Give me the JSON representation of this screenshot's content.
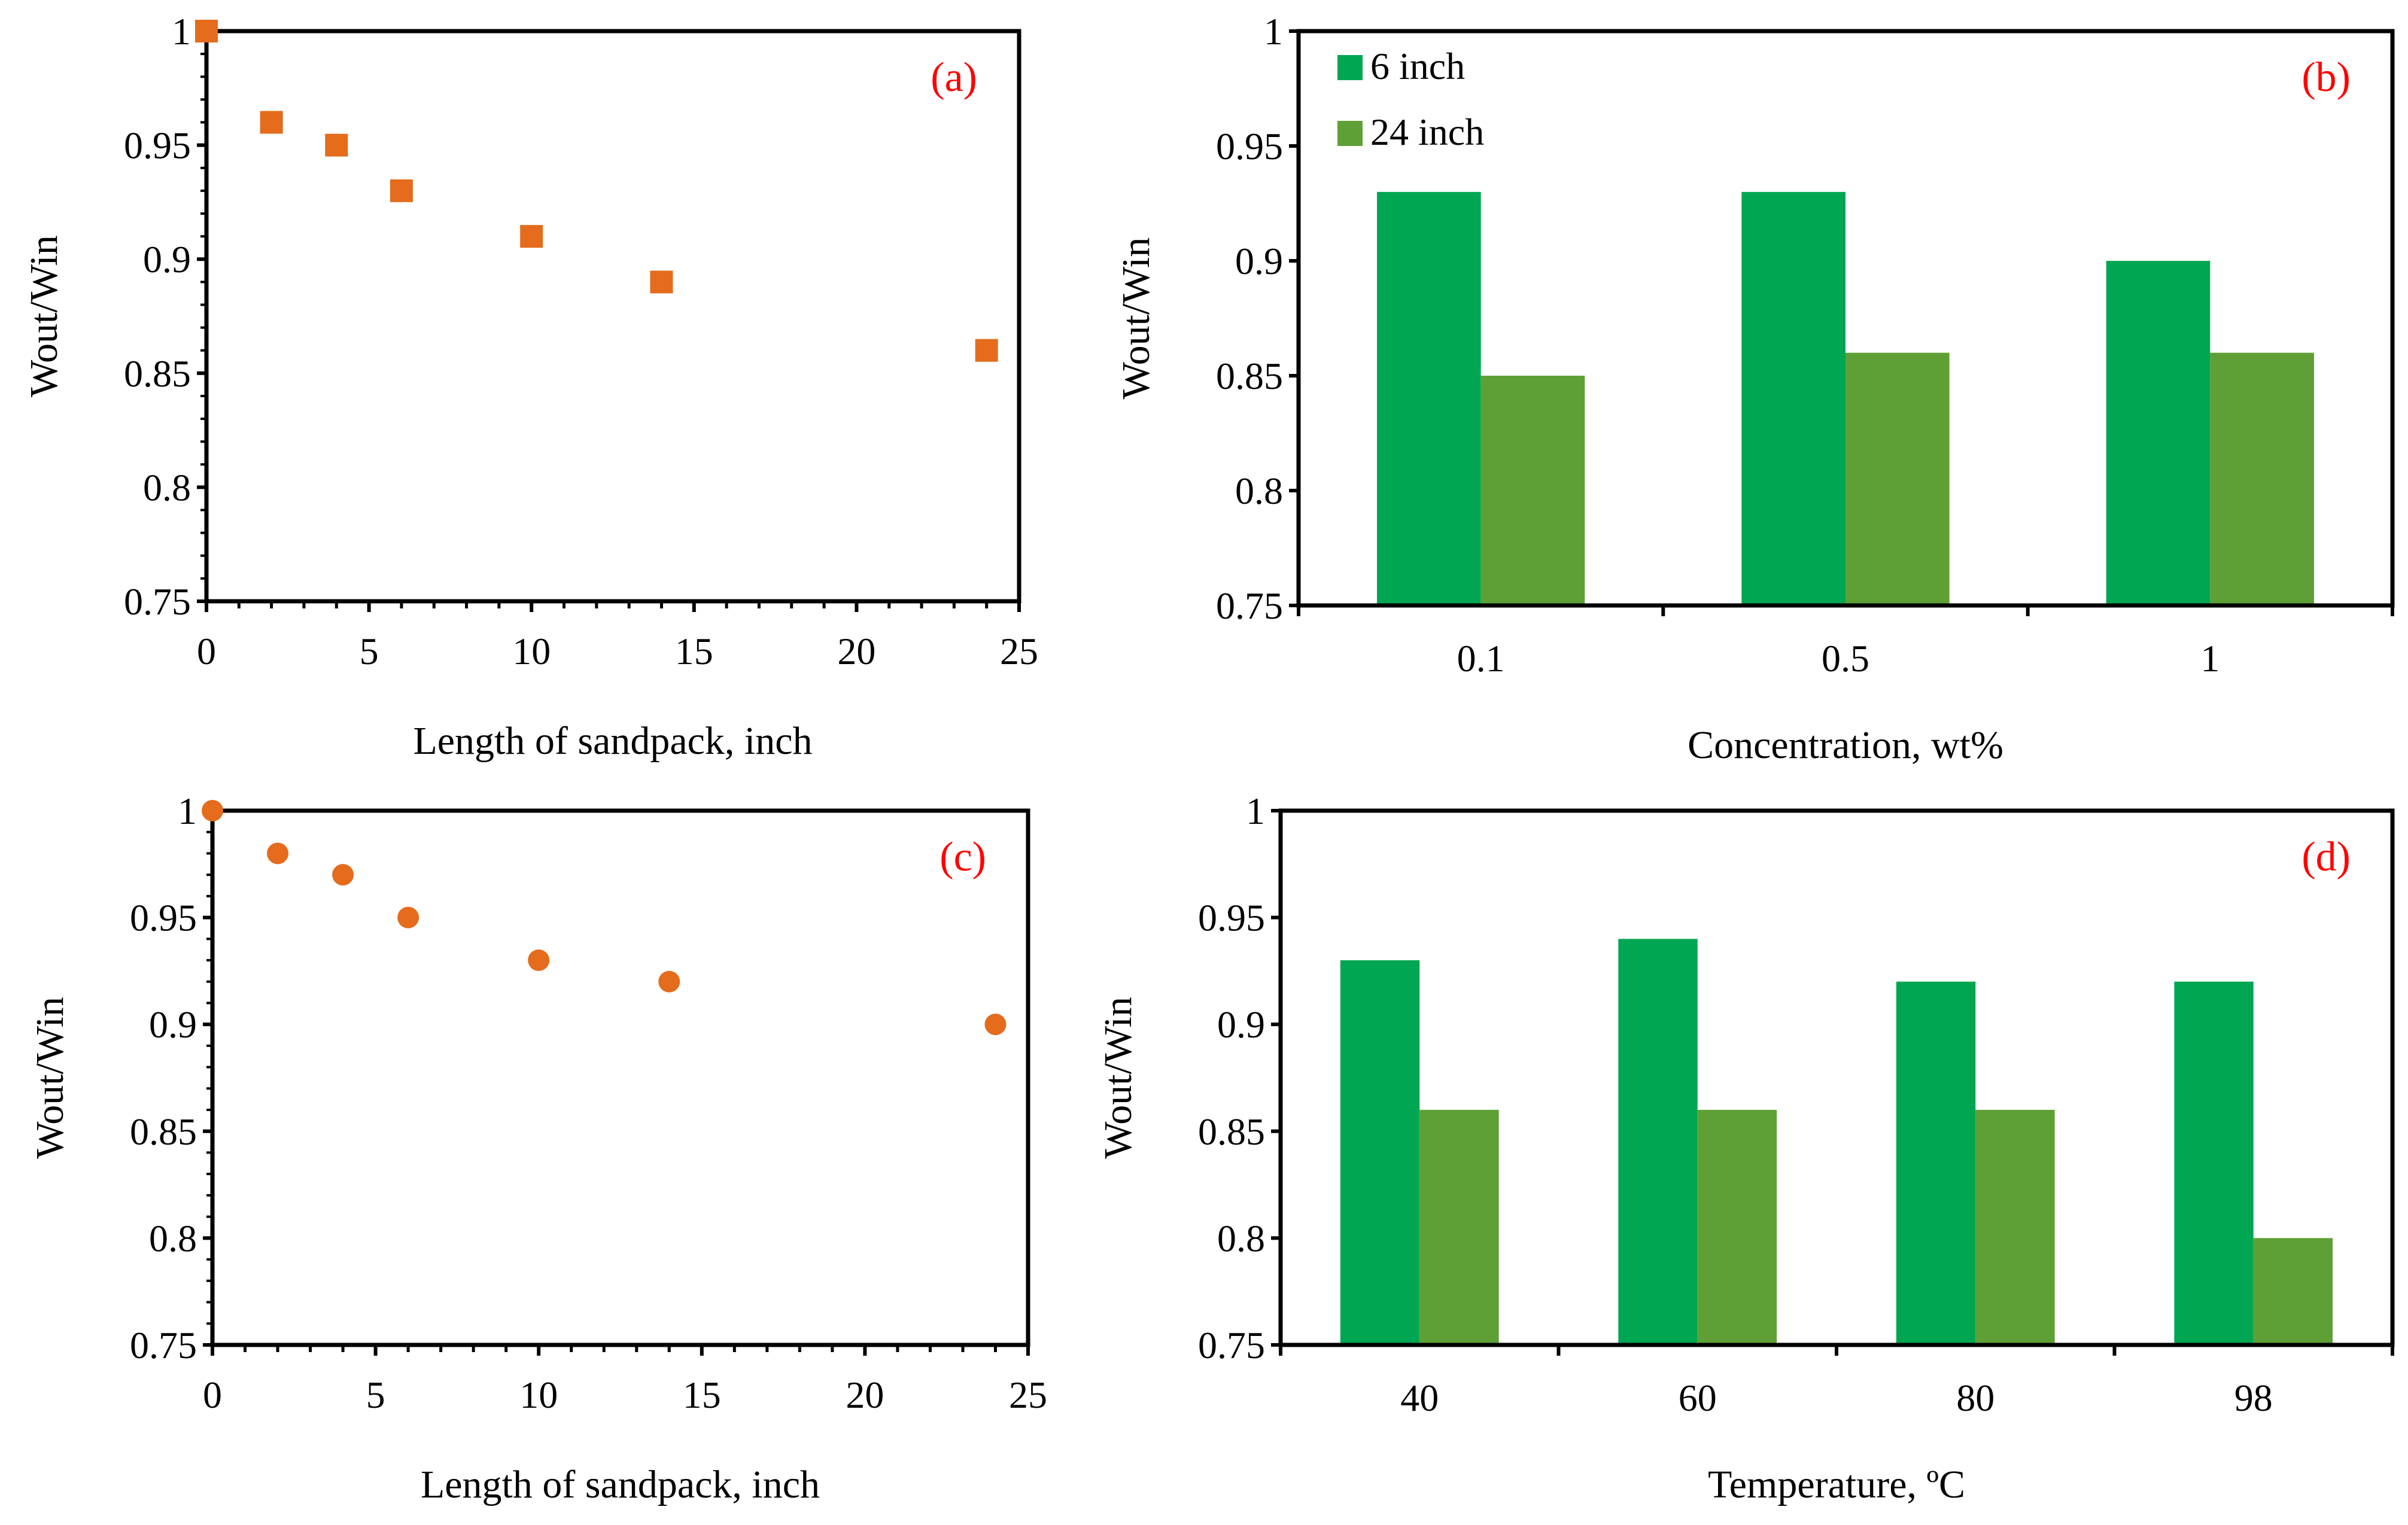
{
  "colors": {
    "marker": "#E46C1C",
    "series_6in": "#00A651",
    "series_24in": "#5FA036",
    "panel_tag": "#FF0000",
    "axis": "#000000"
  },
  "chart_data": [
    {
      "id": "a",
      "type": "scatter",
      "marker": "square",
      "panel_label": "(a)",
      "xlabel": "Length  of sandpack,  inch",
      "ylabel": "Wout/Win",
      "xlim": [
        0,
        25
      ],
      "ylim": [
        0.75,
        1
      ],
      "xticks": [
        0,
        5,
        10,
        15,
        20,
        25
      ],
      "yticks": [
        0.75,
        0.8,
        0.85,
        0.9,
        0.95,
        1
      ],
      "ytick_labels": [
        "0.75",
        "0.8",
        "0.85",
        "0.9",
        "0.95",
        "1"
      ],
      "x": [
        0,
        2,
        4,
        6,
        10,
        14,
        24
      ],
      "y": [
        1.0,
        0.96,
        0.95,
        0.93,
        0.91,
        0.89,
        0.86
      ]
    },
    {
      "id": "b",
      "type": "bar",
      "panel_label": "(b)",
      "xlabel": "Concentration,  wt%",
      "ylabel": "Wout/Win",
      "ylim": [
        0.75,
        1
      ],
      "yticks": [
        0.75,
        0.8,
        0.85,
        0.9,
        0.95,
        1
      ],
      "ytick_labels": [
        "0.75",
        "0.8",
        "0.85",
        "0.9",
        "0.95",
        "1"
      ],
      "categories": [
        "0.1",
        "0.5",
        "1"
      ],
      "legend": "top-left",
      "series": [
        {
          "name": "6 inch",
          "values": [
            0.93,
            0.93,
            0.9
          ]
        },
        {
          "name": "24 inch",
          "values": [
            0.85,
            0.86,
            0.86
          ]
        }
      ]
    },
    {
      "id": "c",
      "type": "scatter",
      "marker": "circle",
      "panel_label": "(c)",
      "xlabel": "Length  of sandpack,  inch",
      "ylabel": "Wout/Win",
      "xlim": [
        0,
        25
      ],
      "ylim": [
        0.75,
        1
      ],
      "xticks": [
        0,
        5,
        10,
        15,
        20,
        25
      ],
      "yticks": [
        0.75,
        0.8,
        0.85,
        0.9,
        0.95,
        1
      ],
      "ytick_labels": [
        "0.75",
        "0.8",
        "0.85",
        "0.9",
        "0.95",
        "1"
      ],
      "x": [
        0,
        2,
        4,
        6,
        10,
        14,
        24
      ],
      "y": [
        1.0,
        0.98,
        0.97,
        0.95,
        0.93,
        0.92,
        0.9
      ]
    },
    {
      "id": "d",
      "type": "bar",
      "panel_label": "(d)",
      "xlabel": "Temperature,  ºC",
      "ylabel": "Wout/Win",
      "ylim": [
        0.75,
        1
      ],
      "yticks": [
        0.75,
        0.8,
        0.85,
        0.9,
        0.95,
        1
      ],
      "ytick_labels": [
        "0.75",
        "0.8",
        "0.85",
        "0.9",
        "0.95",
        "1"
      ],
      "categories": [
        "40",
        "60",
        "80",
        "98"
      ],
      "series": [
        {
          "name": "6 inch",
          "values": [
            0.93,
            0.94,
            0.92,
            0.92
          ]
        },
        {
          "name": "24 inch",
          "values": [
            0.86,
            0.86,
            0.86,
            0.8
          ]
        }
      ]
    }
  ]
}
